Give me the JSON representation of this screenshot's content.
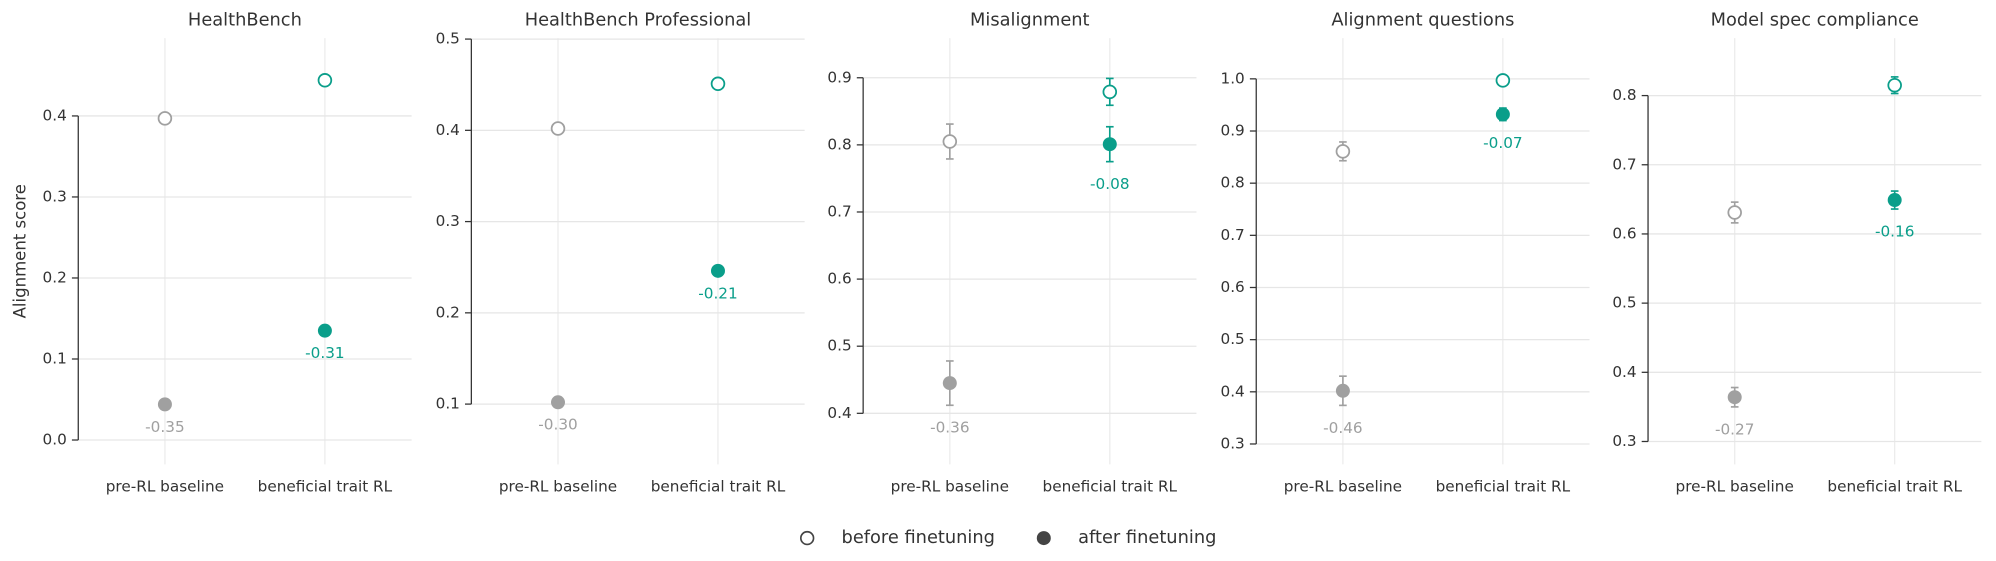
{
  "chart_data": [
    {
      "type": "dot",
      "title": "HealthBench",
      "ylabel": "Alignment score",
      "categories": [
        "pre-RL baseline",
        "beneficial trait RL"
      ],
      "category_colors": [
        "#a0a0a0",
        "#0a9e8a"
      ],
      "series": [
        {
          "name": "before finetuning",
          "marker": "open",
          "values": [
            0.397,
            0.444
          ]
        },
        {
          "name": "after finetuning",
          "marker": "filled",
          "values": [
            0.044,
            0.135
          ]
        }
      ],
      "diff_labels": [
        "-0.35",
        "-0.31"
      ],
      "ylim": [
        -0.03,
        0.496
      ],
      "yticks": [
        {
          "value": 0,
          "label": "0.0"
        },
        0.1,
        0.2,
        0.3,
        0.4
      ],
      "grid": true
    },
    {
      "type": "dot",
      "title": "HealthBench Professional",
      "categories": [
        "pre-RL baseline",
        "beneficial trait RL"
      ],
      "category_colors": [
        "#a0a0a0",
        "#0a9e8a"
      ],
      "series": [
        {
          "name": "before finetuning",
          "marker": "open",
          "values": [
            0.402,
            0.451
          ]
        },
        {
          "name": "after finetuning",
          "marker": "filled",
          "values": [
            0.102,
            0.246
          ]
        }
      ],
      "diff_labels": [
        "-0.30",
        "-0.21"
      ],
      "ylim": [
        0.034,
        0.501
      ],
      "yticks": [
        0.1,
        0.2,
        0.3,
        0.4,
        0.5
      ],
      "grid": true
    },
    {
      "type": "dot",
      "title": "Misalignment",
      "categories": [
        "pre-RL baseline",
        "beneficial trait RL"
      ],
      "category_colors": [
        "#a0a0a0",
        "#0a9e8a"
      ],
      "series": [
        {
          "name": "before finetuning",
          "marker": "open",
          "values": [
            0.805,
            0.879
          ],
          "errors": [
            0.026,
            0.02
          ]
        },
        {
          "name": "after finetuning",
          "marker": "filled",
          "values": [
            0.445,
            0.801
          ],
          "errors": [
            0.033,
            0.026
          ]
        }
      ],
      "diff_labels": [
        "-0.36",
        "-0.08"
      ],
      "ylim": [
        0.324,
        0.959
      ],
      "yticks": [
        0.4,
        0.5,
        0.6,
        0.7,
        0.8,
        0.9
      ],
      "grid": true
    },
    {
      "type": "dot",
      "title": "Alignment questions",
      "categories": [
        "pre-RL baseline",
        "beneficial trait RL"
      ],
      "category_colors": [
        "#a0a0a0",
        "#0a9e8a"
      ],
      "series": [
        {
          "name": "before finetuning",
          "marker": "open",
          "values": [
            0.861,
            0.997
          ],
          "errors": [
            0.018,
            0.005
          ]
        },
        {
          "name": "after finetuning",
          "marker": "filled",
          "values": [
            0.402,
            0.932
          ],
          "errors": [
            0.028,
            0.012
          ]
        }
      ],
      "diff_labels": [
        "-0.46",
        "-0.07"
      ],
      "ylim": [
        0.261,
        1.078
      ],
      "yticks": [
        0.3,
        0.4,
        0.5,
        0.6,
        0.7,
        0.8,
        0.9,
        {
          "value": 1,
          "label": "1.0"
        }
      ],
      "grid": true
    },
    {
      "type": "dot",
      "title": "Model spec compliance",
      "categories": [
        "pre-RL baseline",
        "beneficial trait RL"
      ],
      "category_colors": [
        "#a0a0a0",
        "#0a9e8a"
      ],
      "series": [
        {
          "name": "before finetuning",
          "marker": "open",
          "values": [
            0.631,
            0.815
          ],
          "errors": [
            0.015,
            0.012
          ]
        },
        {
          "name": "after finetuning",
          "marker": "filled",
          "values": [
            0.364,
            0.649
          ],
          "errors": [
            0.014,
            0.013
          ]
        }
      ],
      "diff_labels": [
        "-0.27",
        "-0.16"
      ],
      "ylim": [
        0.267,
        0.883
      ],
      "yticks": [
        0.3,
        0.4,
        0.5,
        0.6,
        0.7,
        0.8
      ],
      "grid": true
    }
  ]
}
